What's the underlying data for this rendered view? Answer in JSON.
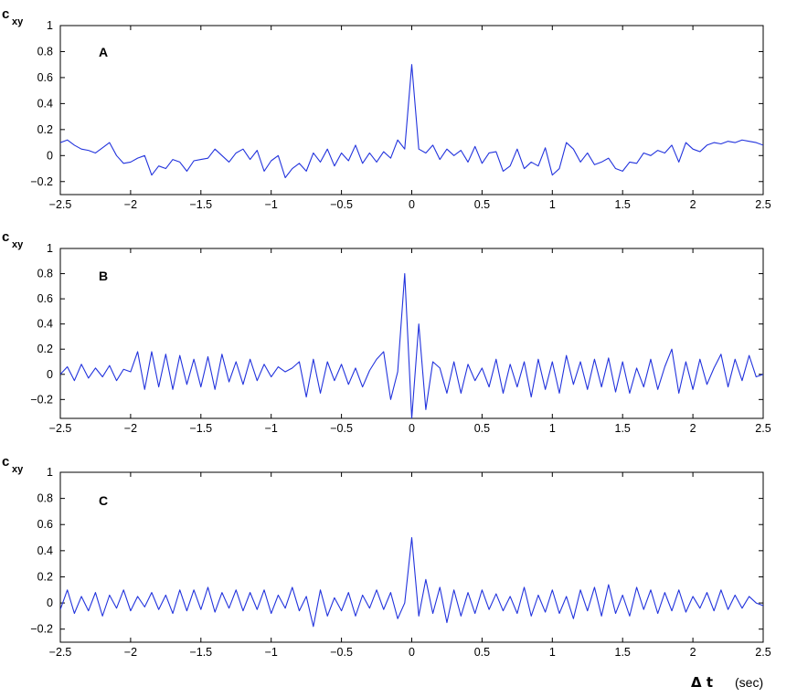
{
  "chart_data": [
    {
      "type": "line",
      "panel_label": "A",
      "ylabel": "c",
      "ylabel_sub": "xy",
      "xlim": [
        -2.5,
        2.5
      ],
      "ylim": [
        -0.3,
        1
      ],
      "xticks": [
        -2.5,
        -2,
        -1.5,
        -1,
        -0.5,
        0,
        0.5,
        1,
        1.5,
        2,
        2.5
      ],
      "xtick_labels": [
        "−2.5",
        "−2",
        "−1.5",
        "−1",
        "−0.5",
        "0",
        "0.5",
        "1",
        "1.5",
        "2",
        "2.5"
      ],
      "yticks": [
        -0.2,
        0,
        0.2,
        0.4,
        0.6,
        0.8,
        1
      ],
      "ytick_labels": [
        "−0.2",
        "0",
        "0.2",
        "0.4",
        "0.6",
        "0.8",
        "1"
      ],
      "color": "#2233dd",
      "series": [
        {
          "x": [
            -2.5,
            -2.45,
            -2.4,
            -2.35,
            -2.3,
            -2.25,
            -2.2,
            -2.15,
            -2.1,
            -2.05,
            -2.0,
            -1.95,
            -1.9,
            -1.85,
            -1.8,
            -1.75,
            -1.7,
            -1.65,
            -1.6,
            -1.55,
            -1.5,
            -1.45,
            -1.4,
            -1.35,
            -1.3,
            -1.25,
            -1.2,
            -1.15,
            -1.1,
            -1.05,
            -1.0,
            -0.95,
            -0.9,
            -0.85,
            -0.8,
            -0.75,
            -0.7,
            -0.65,
            -0.6,
            -0.55,
            -0.5,
            -0.45,
            -0.4,
            -0.35,
            -0.3,
            -0.25,
            -0.2,
            -0.15,
            -0.1,
            -0.05,
            0.0,
            0.05,
            0.1,
            0.15,
            0.2,
            0.25,
            0.3,
            0.35,
            0.4,
            0.45,
            0.5,
            0.55,
            0.6,
            0.65,
            0.7,
            0.75,
            0.8,
            0.85,
            0.9,
            0.95,
            1.0,
            1.05,
            1.1,
            1.15,
            1.2,
            1.25,
            1.3,
            1.35,
            1.4,
            1.45,
            1.5,
            1.55,
            1.6,
            1.65,
            1.7,
            1.75,
            1.8,
            1.85,
            1.9,
            1.95,
            2.0,
            2.05,
            2.1,
            2.15,
            2.2,
            2.25,
            2.3,
            2.35,
            2.4,
            2.45,
            2.5
          ],
          "y": [
            0.1,
            0.12,
            0.08,
            0.05,
            0.04,
            0.02,
            0.06,
            0.1,
            0.0,
            -0.06,
            -0.05,
            -0.02,
            0.0,
            -0.15,
            -0.08,
            -0.1,
            -0.03,
            -0.05,
            -0.12,
            -0.04,
            -0.03,
            -0.02,
            0.05,
            0.0,
            -0.05,
            0.02,
            0.05,
            -0.03,
            0.04,
            -0.12,
            -0.04,
            0.0,
            -0.17,
            -0.1,
            -0.06,
            -0.12,
            0.02,
            -0.05,
            0.05,
            -0.08,
            0.02,
            -0.04,
            0.08,
            -0.06,
            0.02,
            -0.05,
            0.03,
            -0.02,
            0.12,
            0.05,
            0.7,
            0.05,
            0.02,
            0.08,
            -0.03,
            0.05,
            0.0,
            0.04,
            -0.05,
            0.07,
            -0.06,
            0.02,
            0.03,
            -0.12,
            -0.08,
            0.05,
            -0.1,
            -0.05,
            -0.08,
            0.06,
            -0.15,
            -0.1,
            0.1,
            0.05,
            -0.05,
            0.02,
            -0.07,
            -0.05,
            -0.02,
            -0.1,
            -0.12,
            -0.05,
            -0.06,
            0.02,
            0.0,
            0.04,
            0.02,
            0.08,
            -0.05,
            0.1,
            0.05,
            0.03,
            0.08,
            0.1,
            0.09,
            0.11,
            0.1,
            0.12,
            0.11,
            0.1,
            0.08
          ]
        }
      ]
    },
    {
      "type": "line",
      "panel_label": "B",
      "ylabel": "c",
      "ylabel_sub": "xy",
      "xlim": [
        -2.5,
        2.5
      ],
      "ylim": [
        -0.35,
        1
      ],
      "xticks": [
        -2.5,
        -2,
        -1.5,
        -1,
        -0.5,
        0,
        0.5,
        1,
        1.5,
        2,
        2.5
      ],
      "xtick_labels": [
        "−2.5",
        "−2",
        "−1.5",
        "−1",
        "−0.5",
        "0",
        "0.5",
        "1",
        "1.5",
        "2",
        "2.5"
      ],
      "yticks": [
        -0.2,
        0,
        0.2,
        0.4,
        0.6,
        0.8,
        1
      ],
      "ytick_labels": [
        "−0.2",
        "0",
        "0.2",
        "0.4",
        "0.6",
        "0.8",
        "1"
      ],
      "color": "#2233dd",
      "series": [
        {
          "x": [
            -2.5,
            -2.45,
            -2.4,
            -2.35,
            -2.3,
            -2.25,
            -2.2,
            -2.15,
            -2.1,
            -2.05,
            -2.0,
            -1.95,
            -1.9,
            -1.85,
            -1.8,
            -1.75,
            -1.7,
            -1.65,
            -1.6,
            -1.55,
            -1.5,
            -1.45,
            -1.4,
            -1.35,
            -1.3,
            -1.25,
            -1.2,
            -1.15,
            -1.1,
            -1.05,
            -1.0,
            -0.95,
            -0.9,
            -0.85,
            -0.8,
            -0.75,
            -0.7,
            -0.65,
            -0.6,
            -0.55,
            -0.5,
            -0.45,
            -0.4,
            -0.35,
            -0.3,
            -0.25,
            -0.2,
            -0.15,
            -0.1,
            -0.05,
            0.0,
            0.05,
            0.1,
            0.15,
            0.2,
            0.25,
            0.3,
            0.35,
            0.4,
            0.45,
            0.5,
            0.55,
            0.6,
            0.65,
            0.7,
            0.75,
            0.8,
            0.85,
            0.9,
            0.95,
            1.0,
            1.05,
            1.1,
            1.15,
            1.2,
            1.25,
            1.3,
            1.35,
            1.4,
            1.45,
            1.5,
            1.55,
            1.6,
            1.65,
            1.7,
            1.75,
            1.8,
            1.85,
            1.9,
            1.95,
            2.0,
            2.05,
            2.1,
            2.15,
            2.2,
            2.25,
            2.3,
            2.35,
            2.4,
            2.45,
            2.5
          ],
          "y": [
            0.0,
            0.06,
            -0.05,
            0.08,
            -0.03,
            0.05,
            -0.02,
            0.07,
            -0.05,
            0.04,
            0.02,
            0.18,
            -0.12,
            0.18,
            -0.1,
            0.16,
            -0.12,
            0.15,
            -0.08,
            0.12,
            -0.1,
            0.14,
            -0.12,
            0.16,
            -0.06,
            0.1,
            -0.08,
            0.12,
            -0.05,
            0.08,
            -0.02,
            0.06,
            0.02,
            0.05,
            0.1,
            -0.18,
            0.12,
            -0.15,
            0.1,
            -0.05,
            0.08,
            -0.08,
            0.05,
            -0.1,
            0.03,
            0.12,
            0.18,
            -0.2,
            0.02,
            0.8,
            -0.35,
            0.4,
            -0.28,
            0.1,
            0.05,
            -0.15,
            0.1,
            -0.15,
            0.08,
            -0.05,
            0.05,
            -0.1,
            0.12,
            -0.15,
            0.08,
            -0.1,
            0.1,
            -0.18,
            0.12,
            -0.12,
            0.1,
            -0.15,
            0.15,
            -0.08,
            0.1,
            -0.12,
            0.12,
            -0.1,
            0.13,
            -0.14,
            0.1,
            -0.15,
            0.05,
            -0.1,
            0.12,
            -0.12,
            0.06,
            0.2,
            -0.15,
            0.1,
            -0.12,
            0.12,
            -0.08,
            0.05,
            0.16,
            -0.1,
            0.12,
            -0.05,
            0.15,
            -0.02,
            0.0
          ]
        }
      ]
    },
    {
      "type": "line",
      "panel_label": "C",
      "ylabel": "c",
      "ylabel_sub": "xy",
      "xlim": [
        -2.5,
        2.5
      ],
      "ylim": [
        -0.3,
        1
      ],
      "xticks": [
        -2.5,
        -2,
        -1.5,
        -1,
        -0.5,
        0,
        0.5,
        1,
        1.5,
        2,
        2.5
      ],
      "xtick_labels": [
        "−2.5",
        "−2",
        "−1.5",
        "−1",
        "−0.5",
        "0",
        "0.5",
        "1",
        "1.5",
        "2",
        "2.5"
      ],
      "yticks": [
        -0.2,
        0,
        0.2,
        0.4,
        0.6,
        0.8,
        1
      ],
      "ytick_labels": [
        "−0.2",
        "0",
        "0.2",
        "0.4",
        "0.6",
        "0.8",
        "1"
      ],
      "color": "#2233dd",
      "series": [
        {
          "x": [
            -2.5,
            -2.45,
            -2.4,
            -2.35,
            -2.3,
            -2.25,
            -2.2,
            -2.15,
            -2.1,
            -2.05,
            -2.0,
            -1.95,
            -1.9,
            -1.85,
            -1.8,
            -1.75,
            -1.7,
            -1.65,
            -1.6,
            -1.55,
            -1.5,
            -1.45,
            -1.4,
            -1.35,
            -1.3,
            -1.25,
            -1.2,
            -1.15,
            -1.1,
            -1.05,
            -1.0,
            -0.95,
            -0.9,
            -0.85,
            -0.8,
            -0.75,
            -0.7,
            -0.65,
            -0.6,
            -0.55,
            -0.5,
            -0.45,
            -0.4,
            -0.35,
            -0.3,
            -0.25,
            -0.2,
            -0.15,
            -0.1,
            -0.05,
            0.0,
            0.05,
            0.1,
            0.15,
            0.2,
            0.25,
            0.3,
            0.35,
            0.4,
            0.45,
            0.5,
            0.55,
            0.6,
            0.65,
            0.7,
            0.75,
            0.8,
            0.85,
            0.9,
            0.95,
            1.0,
            1.05,
            1.1,
            1.15,
            1.2,
            1.25,
            1.3,
            1.35,
            1.4,
            1.45,
            1.5,
            1.55,
            1.6,
            1.65,
            1.7,
            1.75,
            1.8,
            1.85,
            1.9,
            1.95,
            2.0,
            2.05,
            2.1,
            2.15,
            2.2,
            2.25,
            2.3,
            2.35,
            2.4,
            2.45,
            2.5
          ],
          "y": [
            -0.05,
            0.1,
            -0.08,
            0.05,
            -0.06,
            0.08,
            -0.1,
            0.06,
            -0.04,
            0.1,
            -0.06,
            0.05,
            -0.03,
            0.08,
            -0.05,
            0.06,
            -0.08,
            0.1,
            -0.06,
            0.1,
            -0.05,
            0.12,
            -0.07,
            0.08,
            -0.04,
            0.1,
            -0.06,
            0.08,
            -0.05,
            0.1,
            -0.08,
            0.06,
            -0.04,
            0.12,
            -0.06,
            0.05,
            -0.18,
            0.1,
            -0.1,
            0.04,
            -0.06,
            0.08,
            -0.1,
            0.06,
            -0.04,
            0.1,
            -0.05,
            0.08,
            -0.12,
            0.0,
            0.5,
            -0.1,
            0.18,
            -0.08,
            0.12,
            -0.15,
            0.1,
            -0.1,
            0.08,
            -0.08,
            0.1,
            -0.05,
            0.07,
            -0.06,
            0.05,
            -0.08,
            0.12,
            -0.1,
            0.06,
            -0.07,
            0.1,
            -0.08,
            0.05,
            -0.12,
            0.1,
            -0.06,
            0.12,
            -0.1,
            0.14,
            -0.08,
            0.06,
            -0.1,
            0.12,
            -0.05,
            0.1,
            -0.08,
            0.08,
            -0.06,
            0.1,
            -0.07,
            0.05,
            -0.04,
            0.08,
            -0.06,
            0.1,
            -0.05,
            0.06,
            -0.04,
            0.05,
            0.0,
            -0.02
          ]
        }
      ]
    }
  ],
  "xlabel": {
    "symbol": "Δ t",
    "unit": "(sec)"
  }
}
